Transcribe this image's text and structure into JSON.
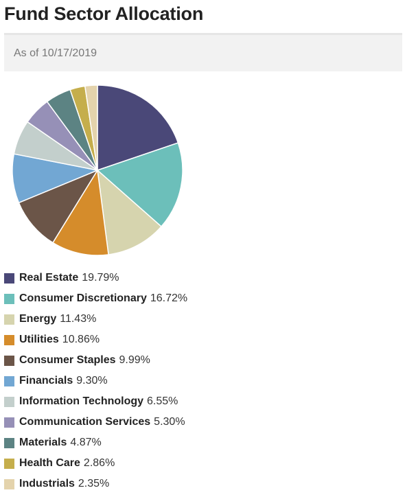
{
  "header": {
    "title": "Fund Sector Allocation",
    "as_of": "As of 10/17/2019"
  },
  "chart_data": {
    "type": "pie",
    "unit": "%",
    "slices": [
      {
        "label": "Real Estate",
        "value": 19.79,
        "display": "19.79%",
        "color": "#4a4878"
      },
      {
        "label": "Consumer Discretionary",
        "value": 16.72,
        "display": "16.72%",
        "color": "#6cbfba"
      },
      {
        "label": "Energy",
        "value": 11.43,
        "display": "11.43%",
        "color": "#d6d4ae"
      },
      {
        "label": "Utilities",
        "value": 10.86,
        "display": "10.86%",
        "color": "#d58c2b"
      },
      {
        "label": "Consumer Staples",
        "value": 9.99,
        "display": "9.99%",
        "color": "#6b5548"
      },
      {
        "label": "Financials",
        "value": 9.3,
        "display": "9.30%",
        "color": "#72a7d3"
      },
      {
        "label": "Information Technology",
        "value": 6.55,
        "display": "6.55%",
        "color": "#c3cfcc"
      },
      {
        "label": "Communication Services",
        "value": 5.3,
        "display": "5.30%",
        "color": "#9690b7"
      },
      {
        "label": "Materials",
        "value": 4.87,
        "display": "4.87%",
        "color": "#5c8383"
      },
      {
        "label": "Health Care",
        "value": 2.86,
        "display": "2.86%",
        "color": "#c5ae4c"
      },
      {
        "label": "Industrials",
        "value": 2.35,
        "display": "2.35%",
        "color": "#e4d3ac"
      }
    ]
  }
}
